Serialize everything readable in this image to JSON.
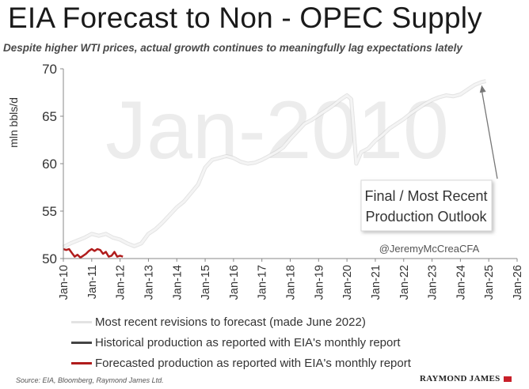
{
  "header": {
    "title": "EIA Forecast to Non - OPEC Supply",
    "subtitle": "Despite higher WTI prices, actual growth continues to meaningfully lag expectations lately"
  },
  "chart_data": {
    "type": "line",
    "ylabel": "mln bbls/d",
    "ylim": [
      50,
      70
    ],
    "yticks": [
      50,
      55,
      60,
      65,
      70
    ],
    "xlim": [
      2010,
      2026
    ],
    "xticks": [
      "Jan-10",
      "Jan-11",
      "Jan-12",
      "Jan-13",
      "Jan-14",
      "Jan-15",
      "Jan-16",
      "Jan-17",
      "Jan-18",
      "Jan-19",
      "Jan-20",
      "Jan-21",
      "Jan-22",
      "Jan-23",
      "Jan-24",
      "Jan-25",
      "Jan-26"
    ],
    "watermark": "Jan-2010",
    "grid": false,
    "legend_position": "bottom",
    "annotation": {
      "text_lines": [
        "Final / Most Recent",
        "Production Outlook"
      ],
      "points_to": [
        2024.75,
        68.6
      ]
    },
    "handle": "@JeremyMcCreaCFA",
    "series": [
      {
        "name": "Most recent revisions to forecast (made June 2022)",
        "color": "#e3e3e3",
        "x": [
          2010.0,
          2010.25,
          2010.5,
          2010.75,
          2011.0,
          2011.25,
          2011.5,
          2011.75,
          2012.0,
          2012.25,
          2012.5,
          2012.75,
          2013.0,
          2013.25,
          2013.5,
          2013.75,
          2014.0,
          2014.25,
          2014.5,
          2014.75,
          2015.0,
          2015.25,
          2015.5,
          2015.75,
          2016.0,
          2016.25,
          2016.5,
          2016.75,
          2017.0,
          2017.25,
          2017.5,
          2017.75,
          2018.0,
          2018.25,
          2018.5,
          2018.75,
          2019.0,
          2019.25,
          2019.5,
          2019.75,
          2020.0,
          2020.15,
          2020.33,
          2020.5,
          2020.75,
          2021.0,
          2021.25,
          2021.5,
          2021.75,
          2022.0,
          2022.25,
          2022.5,
          2022.75,
          2023.0,
          2023.25,
          2023.5,
          2023.75,
          2024.0,
          2024.25,
          2024.5,
          2024.75,
          2024.9
        ],
        "y": [
          51.2,
          51.6,
          51.9,
          52.2,
          52.6,
          52.4,
          52.6,
          52.2,
          52.0,
          51.6,
          51.3,
          51.6,
          52.6,
          53.1,
          53.8,
          54.6,
          55.4,
          56.0,
          56.9,
          57.8,
          59.6,
          60.4,
          60.6,
          60.8,
          60.6,
          60.2,
          60.0,
          60.1,
          60.4,
          60.8,
          61.2,
          61.7,
          62.6,
          63.4,
          64.2,
          64.6,
          65.1,
          65.6,
          66.1,
          66.7,
          67.2,
          66.8,
          60.0,
          61.2,
          61.6,
          62.4,
          63.0,
          63.7,
          64.2,
          64.7,
          65.3,
          65.8,
          66.3,
          66.7,
          67.0,
          67.2,
          67.1,
          67.3,
          67.8,
          68.3,
          68.6,
          68.7
        ]
      },
      {
        "name": "Historical production as reported with EIA's monthly report",
        "color": "#444444",
        "x": [],
        "y": []
      },
      {
        "name": "Forecasted production as reported with EIA's monthly report",
        "color": "#b01c1c",
        "x": [
          2010.0,
          2010.1,
          2010.2,
          2010.3,
          2010.4,
          2010.5,
          2010.6,
          2010.7,
          2010.8,
          2010.9,
          2011.0,
          2011.1,
          2011.2,
          2011.3,
          2011.4,
          2011.5,
          2011.6,
          2011.7,
          2011.8,
          2011.9,
          2012.0,
          2012.1
        ],
        "y": [
          51.0,
          50.9,
          51.0,
          50.6,
          50.2,
          50.4,
          50.1,
          50.3,
          50.5,
          50.8,
          51.0,
          50.8,
          51.0,
          50.9,
          50.5,
          50.7,
          50.2,
          50.3,
          50.7,
          50.2,
          50.3,
          50.2
        ]
      }
    ]
  },
  "footer": {
    "source": "Source: EIA, Bloomberg, Raymond James Ltd.",
    "brand": "RAYMOND JAMES"
  }
}
